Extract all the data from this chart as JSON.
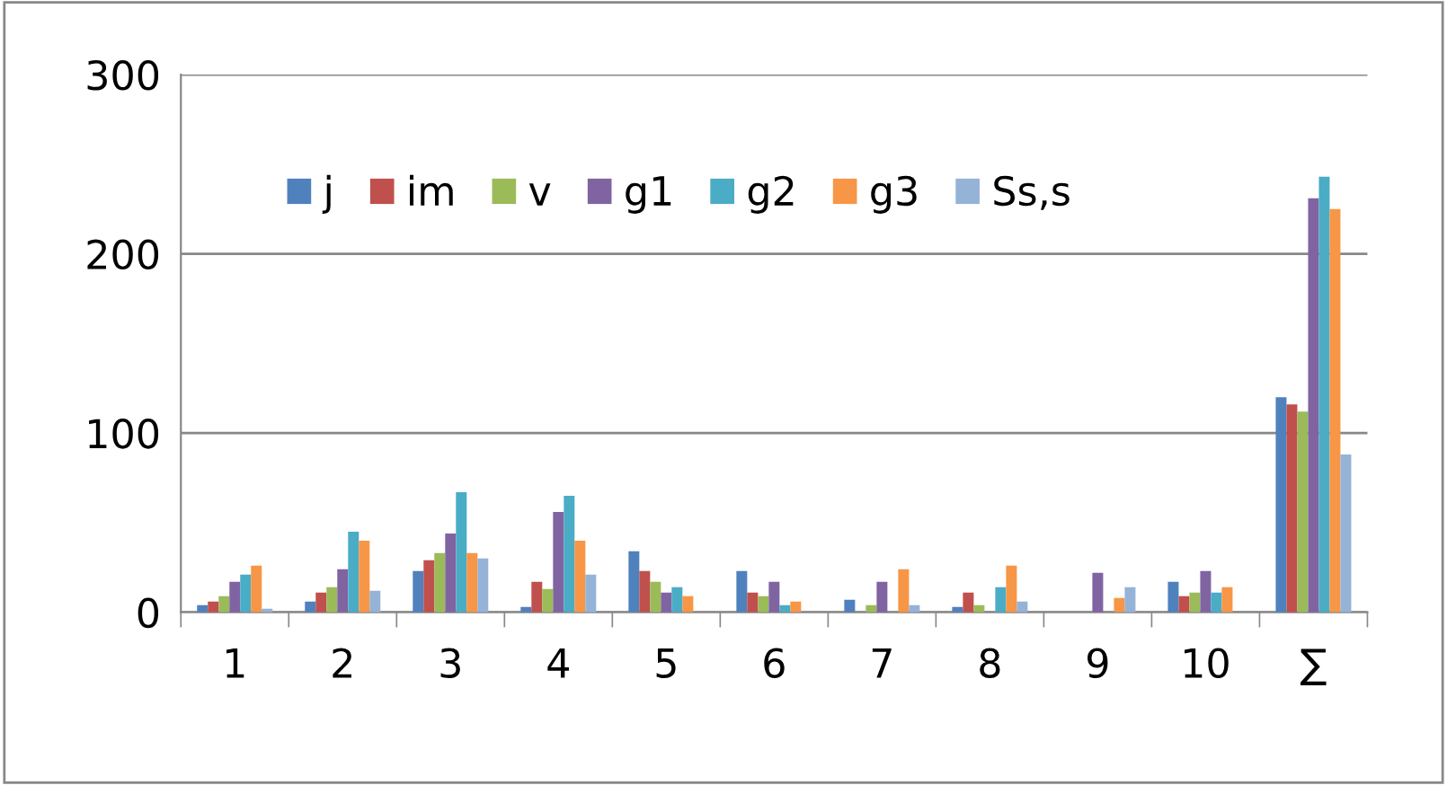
{
  "chart_data": {
    "type": "bar",
    "categories": [
      "1",
      "2",
      "3",
      "4",
      "5",
      "6",
      "7",
      "8",
      "9",
      "10",
      "∑"
    ],
    "series": [
      {
        "name": "j",
        "color": "#4f81bd",
        "values": [
          4,
          6,
          23,
          3,
          34,
          23,
          7,
          3,
          0,
          17,
          120
        ]
      },
      {
        "name": "im",
        "color": "#c0504d",
        "values": [
          6,
          11,
          29,
          17,
          23,
          11,
          0,
          11,
          0,
          9,
          116
        ]
      },
      {
        "name": "v",
        "color": "#9bbb59",
        "values": [
          9,
          14,
          33,
          13,
          17,
          9,
          4,
          4,
          0,
          11,
          112
        ]
      },
      {
        "name": "g1",
        "color": "#8064a2",
        "values": [
          17,
          24,
          44,
          56,
          11,
          17,
          17,
          0,
          22,
          23,
          231
        ]
      },
      {
        "name": "g2",
        "color": "#4bacc6",
        "values": [
          21,
          45,
          67,
          65,
          14,
          4,
          0,
          14,
          0,
          11,
          243
        ]
      },
      {
        "name": "g3",
        "color": "#f79646",
        "values": [
          26,
          40,
          33,
          40,
          9,
          6,
          24,
          26,
          8,
          14,
          225
        ]
      },
      {
        "name": "Ss,s",
        "color": "#95b3d7",
        "values": [
          2,
          12,
          30,
          21,
          0,
          0,
          4,
          6,
          14,
          0,
          88
        ]
      }
    ],
    "ylim": [
      0,
      300
    ],
    "yticks": [
      0,
      100,
      200,
      300
    ],
    "grid": "y",
    "legend": "top"
  }
}
